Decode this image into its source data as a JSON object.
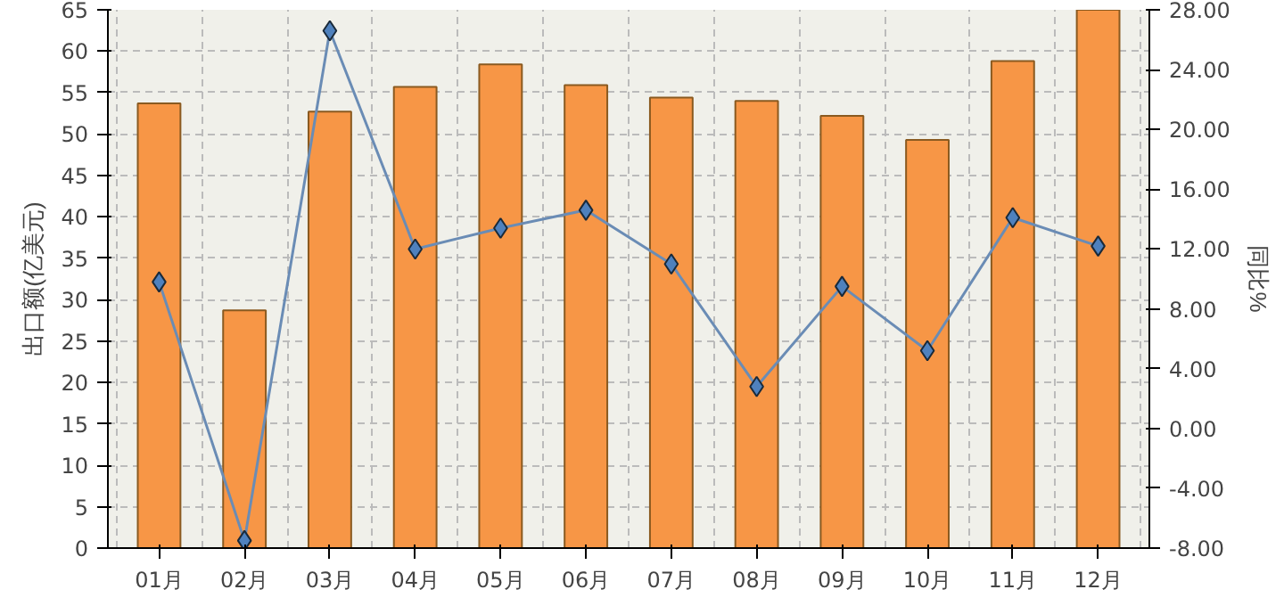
{
  "chart_data": {
    "type": "bar",
    "ylabel": "出口额(亿美元)",
    "y2label": "同比%",
    "categories": [
      "01月",
      "02月",
      "03月",
      "04月",
      "05月",
      "06月",
      "07月",
      "08月",
      "09月",
      "10月",
      "11月",
      "12月"
    ],
    "series": [
      {
        "color": "#f79646",
        "values": [
          53.7,
          28.7,
          52.7,
          55.7,
          58.4,
          55.9,
          54.4,
          54.0,
          52.2,
          49.3,
          58.8,
          65.0
        ]
      },
      {
        "type": "line",
        "axis": "y2",
        "color": "#6a8cb5",
        "marker": "diamond",
        "values": [
          9.8,
          -7.5,
          26.6,
          12.0,
          13.4,
          14.6,
          11.0,
          2.8,
          9.5,
          5.2,
          14.1,
          12.2
        ]
      }
    ],
    "ylim": [
      0,
      65
    ],
    "yticks": [
      0,
      5,
      10,
      15,
      20,
      25,
      30,
      35,
      40,
      45,
      50,
      55,
      60,
      65
    ],
    "y2lim": [
      -8,
      28
    ],
    "y2ticks": [
      {
        "value": -8,
        "label": "-8.00"
      },
      {
        "value": -4,
        "label": "-4.00"
      },
      {
        "value": 0,
        "label": "0.00"
      },
      {
        "value": 4,
        "label": "4.00"
      },
      {
        "value": 8,
        "label": "8.00"
      },
      {
        "value": 12,
        "label": "12.00"
      },
      {
        "value": 16,
        "label": "16.00"
      },
      {
        "value": 20,
        "label": "20.00"
      },
      {
        "value": 24,
        "label": "24.00"
      },
      {
        "value": 28,
        "label": "28.00"
      }
    ],
    "grid": true
  }
}
